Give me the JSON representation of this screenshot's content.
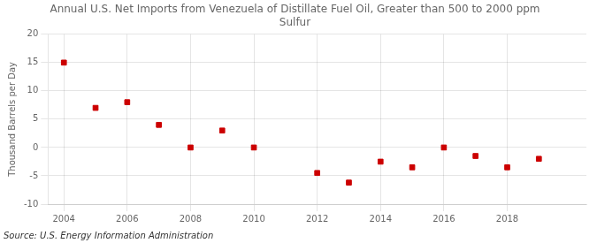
{
  "chart_data": {
    "type": "scatter",
    "title": "Annual U.S. Net Imports from Venezuela of Distillate Fuel Oil, Greater than 500 to 2000 ppm\nSulfur",
    "ylabel": "Thousand Barrels per Day",
    "source": "Source: U.S. Energy Information Administration",
    "x": [
      2004,
      2005,
      2006,
      2007,
      2008,
      2009,
      2010,
      2011,
      2012,
      2013,
      2014,
      2015,
      2016,
      2017,
      2018,
      2019
    ],
    "values": [
      15.0,
      7.0,
      8.0,
      4.0,
      0.0,
      3.0,
      0.0,
      null,
      -4.5,
      -6.2,
      -2.5,
      -3.5,
      0.0,
      -1.5,
      -3.5,
      -2.0
    ],
    "color": "#cc0000",
    "marker": "square",
    "xlim": [
      2003.5,
      2020.5
    ],
    "xticks": [
      2004,
      2006,
      2008,
      2010,
      2012,
      2014,
      2016,
      2018
    ],
    "ylim": [
      -10,
      20
    ],
    "yticks": [
      -10,
      -5,
      0,
      5,
      10,
      15,
      20
    ],
    "grid": true
  }
}
